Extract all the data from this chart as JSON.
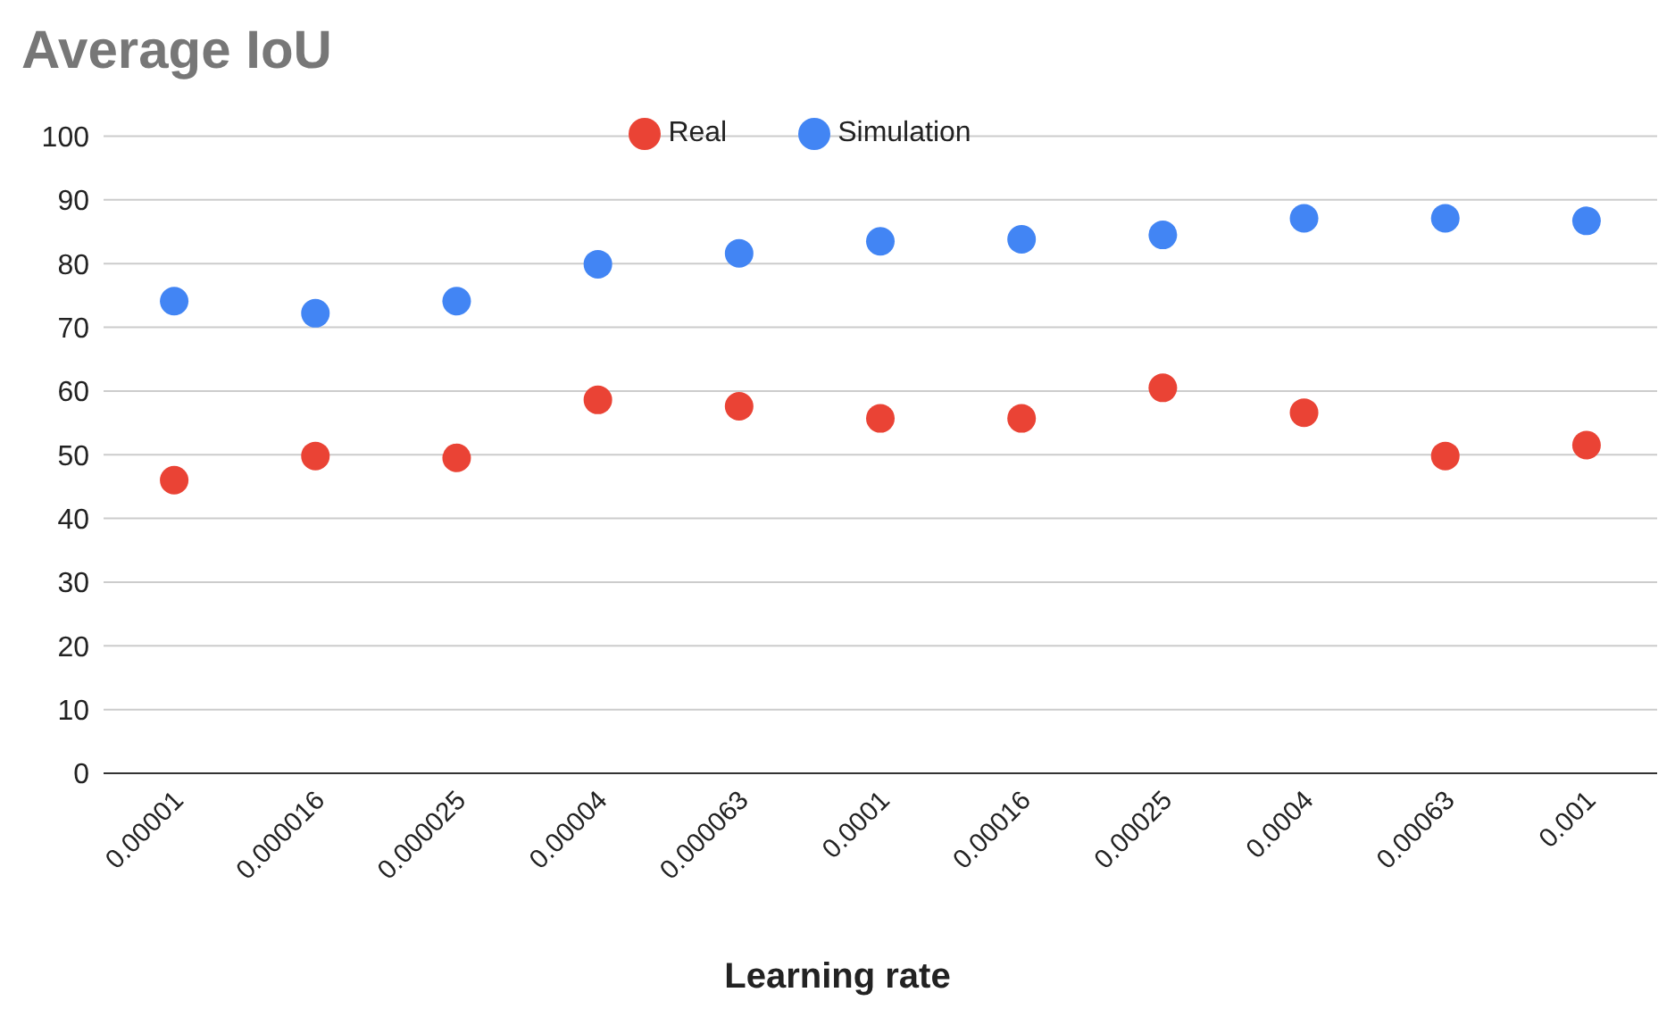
{
  "chart_data": {
    "type": "scatter",
    "title": "Average IoU",
    "xlabel": "Learning rate",
    "categories": [
      "0.00001",
      "0.000016",
      "0.000025",
      "0.00004",
      "0.000063",
      "0.0001",
      "0.00016",
      "0.00025",
      "0.0004",
      "0.00063",
      "0.001"
    ],
    "series": [
      {
        "name": "Simulation",
        "color": "#4285f4",
        "values": [
          74.1,
          72.2,
          74.1,
          79.9,
          81.6,
          83.5,
          83.8,
          84.5,
          87.1,
          87.1,
          86.7
        ]
      },
      {
        "name": "Real",
        "color": "#ea4335",
        "values": [
          46.0,
          49.8,
          49.5,
          58.6,
          57.6,
          55.7,
          55.7,
          60.5,
          56.6,
          49.8,
          51.5
        ]
      }
    ],
    "ylim": [
      0,
      100
    ],
    "yticks": [
      0,
      10,
      20,
      30,
      40,
      50,
      60,
      70,
      80,
      90,
      100
    ],
    "grid": "y",
    "legend": "top",
    "marker": "circle"
  }
}
